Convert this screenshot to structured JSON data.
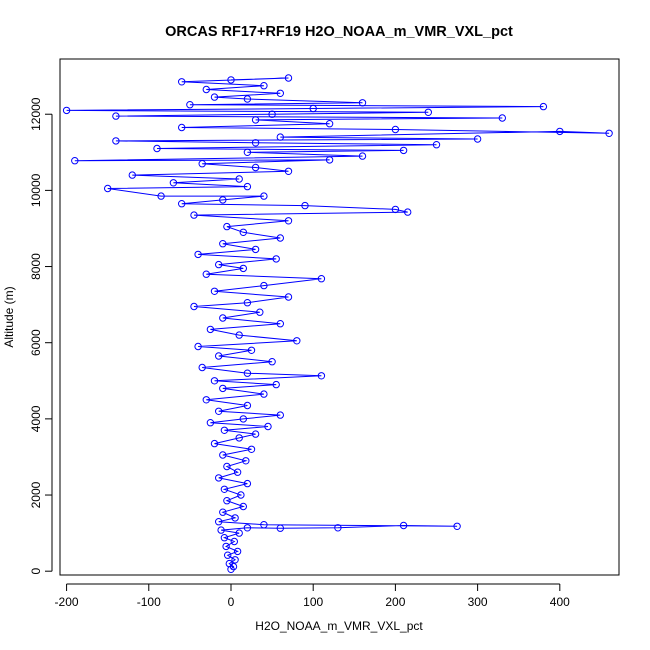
{
  "chart_data": {
    "type": "scatter",
    "title": "ORCAS RF17+RF19 H2O_NOAA_m_VMR_VXL_pct",
    "xlabel": "H2O_NOAA_m_VMR_VXL_pct",
    "ylabel": "Altitude (m)",
    "xlim": [
      -208,
      472
    ],
    "ylim": [
      -100,
      13450
    ],
    "xticks": [
      -200,
      -100,
      0,
      100,
      200,
      300,
      400
    ],
    "yticks": [
      0,
      2000,
      4000,
      6000,
      8000,
      10000,
      12000
    ],
    "grid": false,
    "legend": "none",
    "series_color": "#0000ff",
    "marker": "open-circle",
    "connect_points": true,
    "series": [
      {
        "points": [
          [
            0,
            50
          ],
          [
            3,
            120
          ],
          [
            -2,
            200
          ],
          [
            5,
            300
          ],
          [
            -4,
            420
          ],
          [
            8,
            520
          ],
          [
            -6,
            650
          ],
          [
            4,
            780
          ],
          [
            -8,
            880
          ],
          [
            10,
            1000
          ],
          [
            -12,
            1080
          ],
          [
            20,
            1140
          ],
          [
            60,
            1130
          ],
          [
            130,
            1140
          ],
          [
            210,
            1200
          ],
          [
            275,
            1180
          ],
          [
            40,
            1220
          ],
          [
            -15,
            1300
          ],
          [
            5,
            1400
          ],
          [
            -10,
            1550
          ],
          [
            15,
            1700
          ],
          [
            -5,
            1850
          ],
          [
            12,
            2000
          ],
          [
            -8,
            2150
          ],
          [
            20,
            2300
          ],
          [
            -15,
            2450
          ],
          [
            8,
            2600
          ],
          [
            -5,
            2750
          ],
          [
            18,
            2900
          ],
          [
            -10,
            3050
          ],
          [
            25,
            3200
          ],
          [
            -20,
            3350
          ],
          [
            10,
            3500
          ],
          [
            30,
            3600
          ],
          [
            -8,
            3700
          ],
          [
            45,
            3800
          ],
          [
            -25,
            3900
          ],
          [
            15,
            4000
          ],
          [
            60,
            4100
          ],
          [
            -15,
            4200
          ],
          [
            20,
            4350
          ],
          [
            -30,
            4500
          ],
          [
            40,
            4650
          ],
          [
            -10,
            4800
          ],
          [
            55,
            4900
          ],
          [
            -20,
            5000
          ],
          [
            110,
            5130
          ],
          [
            20,
            5200
          ],
          [
            -35,
            5350
          ],
          [
            50,
            5500
          ],
          [
            -15,
            5650
          ],
          [
            25,
            5800
          ],
          [
            -40,
            5900
          ],
          [
            80,
            6050
          ],
          [
            10,
            6200
          ],
          [
            -25,
            6350
          ],
          [
            60,
            6500
          ],
          [
            -10,
            6650
          ],
          [
            35,
            6800
          ],
          [
            -45,
            6950
          ],
          [
            20,
            7050
          ],
          [
            70,
            7200
          ],
          [
            -20,
            7350
          ],
          [
            40,
            7500
          ],
          [
            110,
            7680
          ],
          [
            -30,
            7800
          ],
          [
            15,
            7950
          ],
          [
            -15,
            8050
          ],
          [
            55,
            8200
          ],
          [
            -40,
            8320
          ],
          [
            30,
            8450
          ],
          [
            -10,
            8600
          ],
          [
            60,
            8750
          ],
          [
            15,
            8900
          ],
          [
            -5,
            9050
          ],
          [
            70,
            9200
          ],
          [
            -45,
            9350
          ],
          [
            215,
            9430
          ],
          [
            200,
            9500
          ],
          [
            90,
            9600
          ],
          [
            -60,
            9650
          ],
          [
            -10,
            9750
          ],
          [
            40,
            9850
          ],
          [
            -85,
            9850
          ],
          [
            -150,
            10050
          ],
          [
            20,
            10100
          ],
          [
            -70,
            10200
          ],
          [
            10,
            10300
          ],
          [
            -120,
            10400
          ],
          [
            70,
            10500
          ],
          [
            30,
            10600
          ],
          [
            -35,
            10700
          ],
          [
            120,
            10800
          ],
          [
            -190,
            10780
          ],
          [
            160,
            10900
          ],
          [
            20,
            11000
          ],
          [
            210,
            11050
          ],
          [
            -90,
            11100
          ],
          [
            250,
            11200
          ],
          [
            30,
            11250
          ],
          [
            -140,
            11300
          ],
          [
            300,
            11350
          ],
          [
            60,
            11400
          ],
          [
            400,
            11550
          ],
          [
            460,
            11500
          ],
          [
            200,
            11600
          ],
          [
            -60,
            11650
          ],
          [
            120,
            11750
          ],
          [
            30,
            11850
          ],
          [
            330,
            11900
          ],
          [
            -140,
            11950
          ],
          [
            50,
            12000
          ],
          [
            240,
            12050
          ],
          [
            -200,
            12100
          ],
          [
            100,
            12150
          ],
          [
            380,
            12200
          ],
          [
            -50,
            12250
          ],
          [
            160,
            12300
          ],
          [
            20,
            12400
          ],
          [
            -20,
            12450
          ],
          [
            60,
            12550
          ],
          [
            -30,
            12650
          ],
          [
            40,
            12750
          ],
          [
            -60,
            12850
          ],
          [
            70,
            12950
          ],
          [
            0,
            12900
          ]
        ]
      }
    ]
  }
}
